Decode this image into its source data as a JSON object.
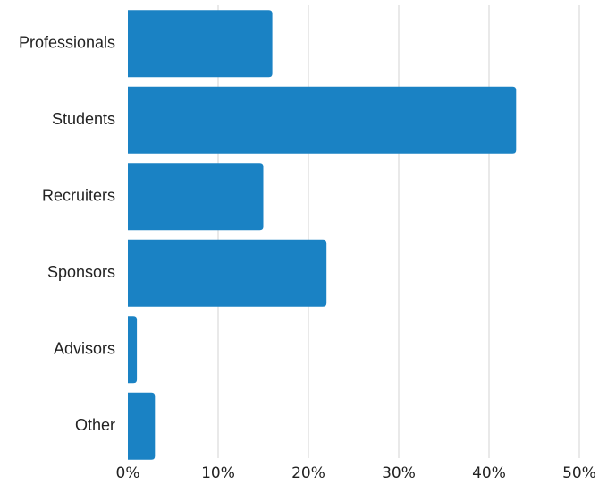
{
  "chart_data": {
    "type": "bar",
    "orientation": "horizontal",
    "categories": [
      "Professionals",
      "Students",
      "Recruiters",
      "Sponsors",
      "Advisors",
      "Other"
    ],
    "values": [
      16,
      43,
      15,
      22,
      1,
      3
    ],
    "unit": "%",
    "xlim": [
      0,
      50
    ],
    "xticks": [
      "0%",
      "10%",
      "20%",
      "30%",
      "40%",
      "50%"
    ],
    "grid": true,
    "legend": "none",
    "colors": {
      "bar": "#1a82c4",
      "grid": "#d3d3d3",
      "text": "#222222"
    }
  }
}
